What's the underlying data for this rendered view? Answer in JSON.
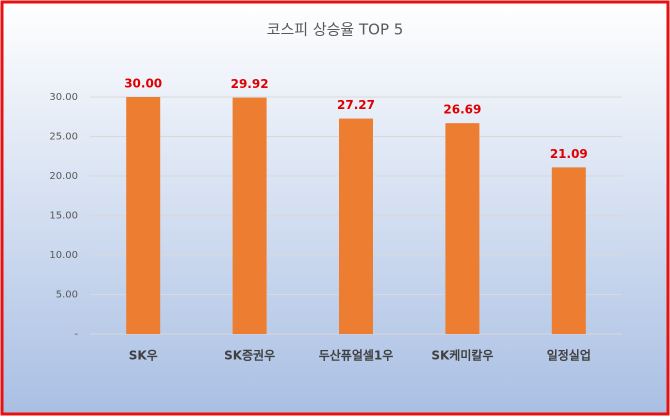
{
  "chart_data": {
    "type": "bar",
    "title": "코스피 상승율 TOP 5",
    "categories": [
      "SK우",
      "SK증권우",
      "두산퓨얼셀1우",
      "SK케미칼우",
      "일정실업"
    ],
    "values": [
      30.0,
      29.92,
      27.27,
      26.69,
      21.09
    ],
    "value_labels": [
      "30.00",
      "29.92",
      "27.27",
      "26.69",
      "21.09"
    ],
    "color": "#ed7d31",
    "ylim": [
      0,
      30
    ],
    "yticks": [
      {
        "value": 0,
        "label": "-"
      },
      {
        "value": 5,
        "label": "5.00"
      },
      {
        "value": 10,
        "label": "10.00"
      },
      {
        "value": 15,
        "label": "15.00"
      },
      {
        "value": 20,
        "label": "20.00"
      },
      {
        "value": 25,
        "label": "25.00"
      },
      {
        "value": 30,
        "label": "30.00"
      }
    ],
    "grid": true
  }
}
